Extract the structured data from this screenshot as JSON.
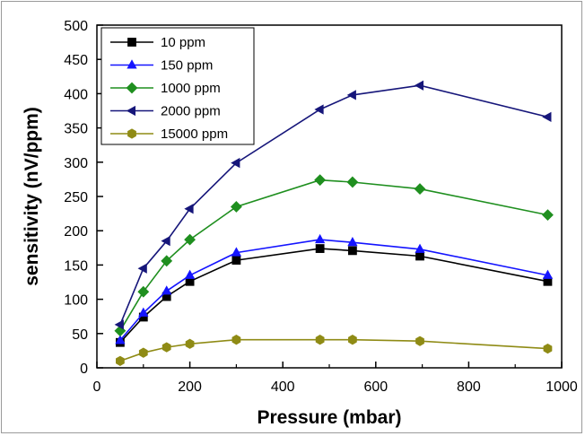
{
  "chart_data": {
    "type": "line",
    "xlabel": "Pressure (mbar)",
    "ylabel": "sensitivity (nV/ppm)",
    "xlim": [
      0,
      1000
    ],
    "ylim": [
      0,
      500
    ],
    "xticks": [
      0,
      200,
      400,
      600,
      800,
      1000
    ],
    "yticks": [
      0,
      50,
      100,
      150,
      200,
      250,
      300,
      350,
      400,
      450,
      500
    ],
    "grid": false,
    "legend_position": "top-left",
    "series": [
      {
        "name": "10 ppm",
        "color": "#000000",
        "marker": "square",
        "x": [
          50,
          100,
          150,
          200,
          300,
          480,
          550,
          695,
          970
        ],
        "y": [
          37,
          74,
          104,
          126,
          157,
          174,
          171,
          163,
          126
        ]
      },
      {
        "name": "150 ppm",
        "color": "#1414ff",
        "marker": "triangle-up",
        "x": [
          50,
          100,
          150,
          200,
          300,
          480,
          550,
          695,
          970
        ],
        "y": [
          40,
          80,
          112,
          135,
          168,
          187,
          183,
          173,
          135
        ]
      },
      {
        "name": "1000 ppm",
        "color": "#1f8f1f",
        "marker": "diamond",
        "x": [
          50,
          100,
          150,
          200,
          300,
          480,
          550,
          695,
          970
        ],
        "y": [
          54,
          111,
          156,
          187,
          235,
          274,
          271,
          261,
          223
        ]
      },
      {
        "name": "2000 ppm",
        "color": "#16167a",
        "marker": "triangle-left",
        "x": [
          50,
          100,
          150,
          200,
          300,
          480,
          550,
          695,
          970
        ],
        "y": [
          63,
          145,
          185,
          232,
          299,
          377,
          398,
          412,
          366
        ]
      },
      {
        "name": "15000 ppm",
        "color": "#8f8b15",
        "marker": "hexagon",
        "x": [
          50,
          100,
          150,
          200,
          300,
          480,
          550,
          695,
          970
        ],
        "y": [
          10,
          22,
          30,
          35,
          41,
          41,
          41,
          39,
          28
        ]
      }
    ]
  }
}
